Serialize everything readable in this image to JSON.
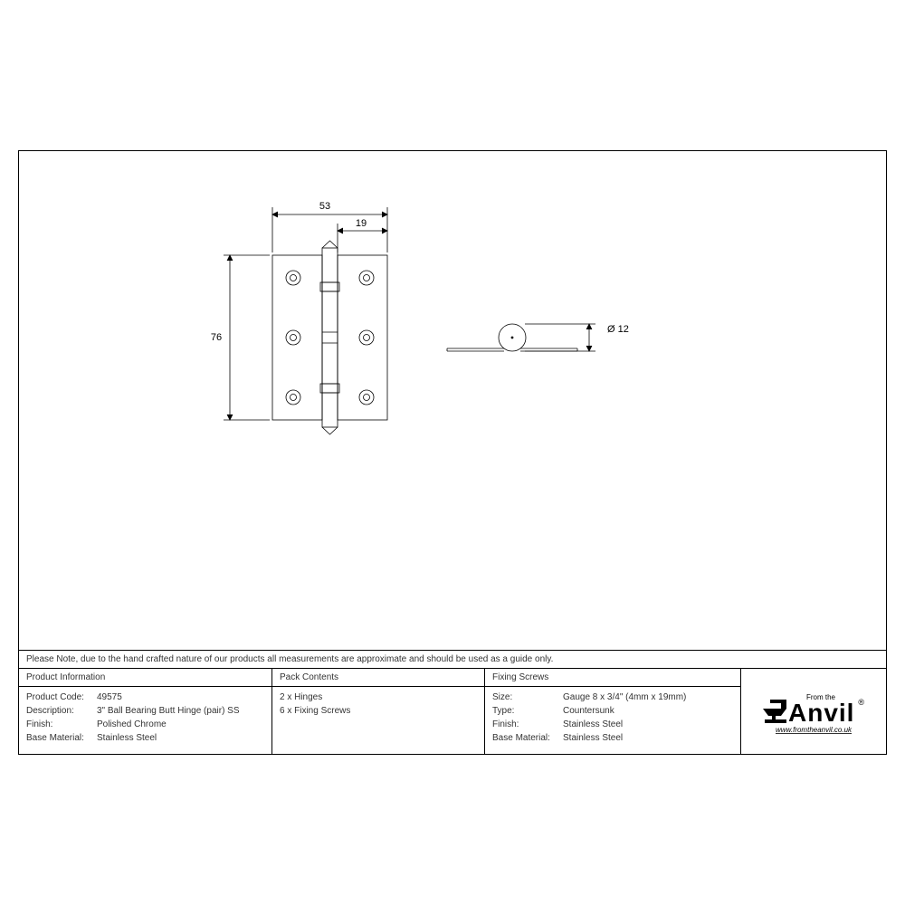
{
  "note": "Please Note, due to the hand crafted nature of our products all measurements are approximate and should be used as a guide only.",
  "dims": {
    "width": "53",
    "leaf": "19",
    "height": "76",
    "knuckle_dia": "Ø 12"
  },
  "col1": {
    "title": "Product Information",
    "rows": [
      {
        "label": "Product Code:",
        "value": "49575"
      },
      {
        "label": "Description:",
        "value": "3\" Ball Bearing Butt Hinge (pair) SS"
      },
      {
        "label": "Finish:",
        "value": "Polished Chrome"
      },
      {
        "label": "Base Material:",
        "value": "Stainless Steel"
      }
    ]
  },
  "col2": {
    "title": "Pack Contents",
    "rows": [
      {
        "value": "2 x Hinges"
      },
      {
        "value": "6 x Fixing Screws"
      }
    ]
  },
  "col3": {
    "title": "Fixing Screws",
    "rows": [
      {
        "label": "Size:",
        "value": "Gauge 8 x 3/4\" (4mm x 19mm)"
      },
      {
        "label": "Type:",
        "value": "Countersunk"
      },
      {
        "label": "Finish:",
        "value": "Stainless Steel"
      },
      {
        "label": "Base Material:",
        "value": "Stainless Steel"
      }
    ]
  },
  "logo": {
    "tag": "From the",
    "brand": "Anvil",
    "url": "www.fromtheanvil.co.uk"
  },
  "style": {
    "stroke": "#000000",
    "thin": 0.8,
    "fill": "none",
    "col1_width": 280,
    "col2_width": 235,
    "col3_width": 283
  }
}
